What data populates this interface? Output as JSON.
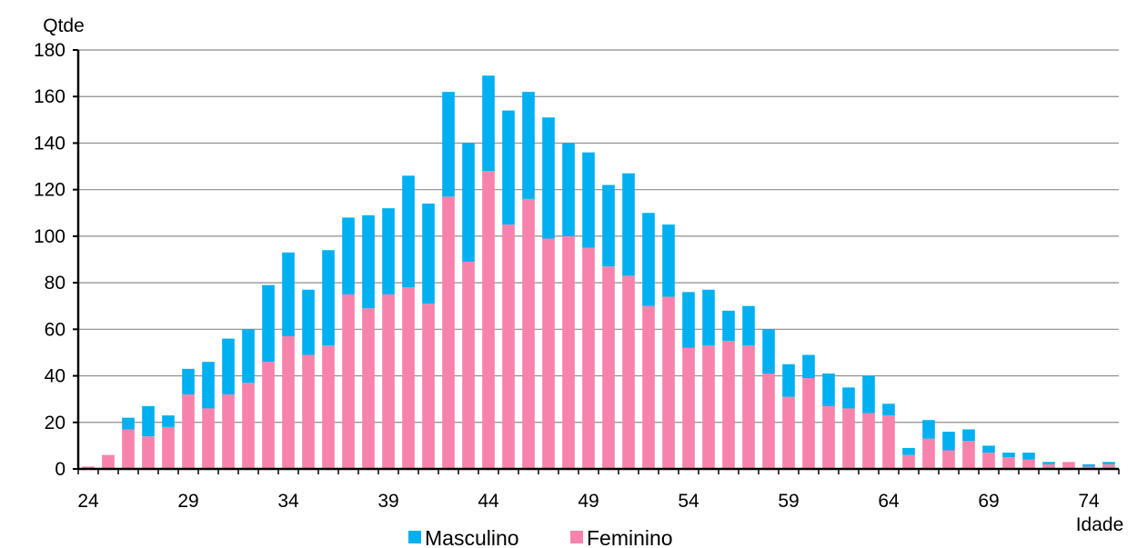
{
  "chart_data": {
    "type": "bar",
    "stacked": true,
    "xlabel": "Idade",
    "ylabel": "Qtde",
    "ylim": [
      0,
      180
    ],
    "yticks": [
      0,
      20,
      40,
      60,
      80,
      100,
      120,
      140,
      160,
      180
    ],
    "xtick_labels": [
      "24",
      "29",
      "34",
      "39",
      "44",
      "49",
      "54",
      "59",
      "64",
      "69",
      "74"
    ],
    "grid": "horizontal",
    "legend_position": "bottom",
    "colors": {
      "Masculino": "#00b0f0",
      "Feminino": "#f783ac"
    },
    "x": [
      24,
      25,
      26,
      27,
      28,
      29,
      30,
      31,
      32,
      33,
      34,
      35,
      36,
      37,
      38,
      39,
      40,
      41,
      42,
      43,
      44,
      45,
      46,
      47,
      48,
      49,
      50,
      51,
      52,
      53,
      54,
      55,
      56,
      57,
      58,
      59,
      60,
      61,
      62,
      63,
      64,
      65,
      66,
      67,
      68,
      69,
      70,
      71,
      72,
      73,
      74,
      75
    ],
    "series": [
      {
        "name": "Feminino",
        "values": [
          1,
          6,
          17,
          14,
          18,
          32,
          26,
          32,
          37,
          46,
          57,
          49,
          53,
          75,
          69,
          75,
          78,
          71,
          117,
          89,
          128,
          105,
          116,
          99,
          100,
          95,
          87,
          83,
          70,
          74,
          52,
          53,
          55,
          53,
          41,
          31,
          39,
          27,
          26,
          24,
          23,
          6,
          13,
          8,
          12,
          7,
          5,
          4,
          2,
          3,
          1,
          2
        ]
      },
      {
        "name": "Masculino",
        "values": [
          0,
          0,
          5,
          13,
          5,
          11,
          20,
          24,
          23,
          33,
          36,
          28,
          41,
          33,
          40,
          37,
          48,
          43,
          45,
          51,
          41,
          49,
          46,
          52,
          40,
          41,
          35,
          44,
          40,
          31,
          24,
          24,
          13,
          17,
          19,
          14,
          10,
          14,
          9,
          16,
          5,
          3,
          8,
          8,
          5,
          3,
          2,
          3,
          1,
          0,
          1,
          1
        ]
      }
    ]
  }
}
